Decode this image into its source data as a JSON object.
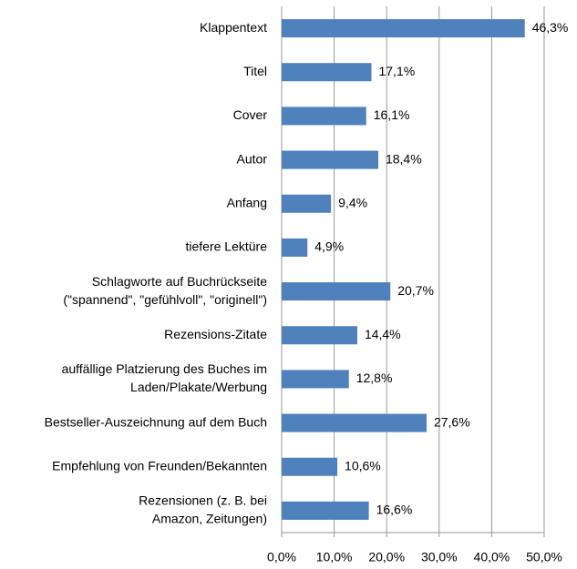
{
  "chart_data": {
    "type": "hbar",
    "categories": [
      [
        "Klappentext"
      ],
      [
        "Titel"
      ],
      [
        "Cover"
      ],
      [
        "Autor"
      ],
      [
        "Anfang"
      ],
      [
        "tiefere Lektüre"
      ],
      [
        "Schlagworte auf Buchrückseite",
        "(\"spannend\", \"gefühlvoll\", \"originell\")"
      ],
      [
        "Rezensions-Zitate"
      ],
      [
        "auffällige Platzierung des Buches im",
        "Laden/Plakate/Werbung"
      ],
      [
        "Bestseller-Auszeichnung auf dem Buch"
      ],
      [
        "Empfehlung von Freunden/Bekannten"
      ],
      [
        "Rezensionen (z. B. bei",
        "Amazon, Zeitungen)"
      ]
    ],
    "values": [
      46.3,
      17.1,
      16.1,
      18.4,
      9.4,
      4.9,
      20.7,
      14.4,
      12.8,
      27.6,
      10.6,
      16.6
    ],
    "value_labels": [
      "46,3%",
      "17,1%",
      "16,1%",
      "18,4%",
      "9,4%",
      "4,9%",
      "20,7%",
      "14,4%",
      "12,8%",
      "27,6%",
      "10,6%",
      "16,6%"
    ],
    "color": "#4f81bd",
    "xlim": [
      0,
      50
    ],
    "xticks": [
      {
        "value": 0,
        "label": "0,0%"
      },
      {
        "value": 10,
        "label": "10,0%"
      },
      {
        "value": 20,
        "label": "20,0%"
      },
      {
        "value": 30,
        "label": "30,0%"
      },
      {
        "value": 40,
        "label": "40,0%"
      },
      {
        "value": 50,
        "label": "50,0%"
      }
    ],
    "grid": true
  }
}
